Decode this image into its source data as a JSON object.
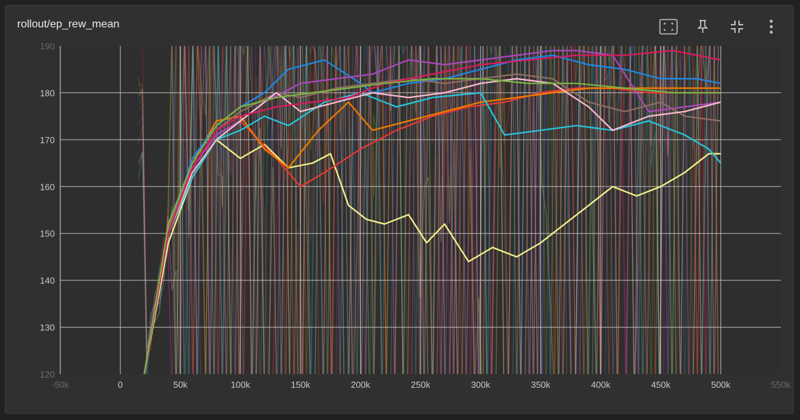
{
  "card": {
    "title": "rollout/ep_rew_mean"
  },
  "toolbar": {
    "icons": [
      "fit-domain-icon",
      "pin-icon",
      "collapse-icon",
      "more-vert-icon"
    ]
  },
  "colors": {
    "background": "#303030",
    "plot_bg": "#2e2e2e",
    "grid": "#d0d0d0",
    "text": "#c9c9c9"
  },
  "chart_data": {
    "type": "line",
    "title": "rollout/ep_rew_mean",
    "xlabel": "",
    "ylabel": "",
    "xlim": [
      -50000,
      550000
    ],
    "ylim": [
      120,
      190
    ],
    "grid": true,
    "x_ticks": [
      0,
      50000,
      100000,
      150000,
      200000,
      250000,
      300000,
      350000,
      400000,
      450000,
      500000
    ],
    "x_tick_labels": [
      "0",
      "50k",
      "100k",
      "150k",
      "200k",
      "250k",
      "300k",
      "350k",
      "400k",
      "450k",
      "500k"
    ],
    "y_ticks": [
      130,
      140,
      150,
      160,
      170,
      180
    ],
    "y_tick_labels": [
      "130",
      "140",
      "150",
      "160",
      "170",
      "180"
    ],
    "edge_tick_labels": [
      "-50k",
      "550k",
      "190",
      "120"
    ],
    "series": [
      {
        "color": "#f2f28a",
        "x": [
          20000,
          40000,
          60000,
          80000,
          100000,
          120000,
          140000,
          160000,
          175000,
          190000,
          205000,
          220000,
          240000,
          255000,
          270000,
          290000,
          310000,
          330000,
          350000,
          370000,
          390000,
          410000,
          430000,
          450000,
          470000,
          490000,
          500000
        ],
        "y": [
          120,
          148,
          162,
          170,
          166,
          169,
          164,
          165,
          167,
          156,
          153,
          152,
          154,
          148,
          152,
          144,
          147,
          145,
          148,
          152,
          156,
          160,
          158,
          160,
          163,
          167,
          167
        ]
      },
      {
        "color": "#e53935",
        "x": [
          20000,
          40000,
          60000,
          80000,
          100000,
          130000,
          150000,
          170000,
          200000,
          230000,
          260000,
          290000,
          320000,
          350000,
          380000,
          410000,
          440000,
          470000,
          500000
        ],
        "y": [
          120,
          150,
          164,
          171,
          174,
          166,
          160,
          163,
          168,
          172,
          175,
          177,
          178,
          180,
          181,
          181,
          180,
          180,
          180
        ]
      },
      {
        "color": "#ef7c00",
        "x": [
          20000,
          40000,
          60000,
          80000,
          100000,
          120000,
          140000,
          165000,
          190000,
          210000,
          240000,
          270000,
          300000,
          330000,
          360000,
          390000,
          420000,
          450000,
          480000,
          500000
        ],
        "y": [
          120,
          152,
          165,
          174,
          175,
          168,
          164,
          172,
          178,
          172,
          174,
          176,
          178,
          179,
          180,
          181,
          181,
          181,
          181,
          181
        ]
      },
      {
        "color": "#1e88e5",
        "x": [
          20000,
          40000,
          60000,
          80000,
          100000,
          120000,
          140000,
          170000,
          200000,
          210000,
          240000,
          270000,
          300000,
          330000,
          360000,
          390000,
          420000,
          450000,
          480000,
          500000
        ],
        "y": [
          120,
          150,
          166,
          173,
          177,
          180,
          185,
          187,
          182,
          180,
          182,
          183,
          185,
          187,
          188,
          186,
          185,
          183,
          183,
          182
        ]
      },
      {
        "color": "#26c6da",
        "x": [
          20000,
          40000,
          60000,
          80000,
          100000,
          120000,
          140000,
          170000,
          200000,
          230000,
          260000,
          300000,
          320000,
          350000,
          380000,
          410000,
          440000,
          470000,
          490000,
          500000
        ],
        "y": [
          120,
          150,
          162,
          170,
          172,
          175,
          173,
          178,
          180,
          177,
          179,
          180,
          171,
          172,
          173,
          172,
          174,
          171,
          168,
          165
        ]
      },
      {
        "color": "#ab47bc",
        "x": [
          20000,
          40000,
          60000,
          80000,
          100000,
          120000,
          150000,
          180000,
          210000,
          240000,
          270000,
          300000,
          330000,
          360000,
          380000,
          410000,
          440000,
          470000,
          500000
        ],
        "y": [
          120,
          151,
          164,
          171,
          174,
          178,
          182,
          183,
          184,
          187,
          186,
          187,
          188,
          189,
          189,
          188,
          176,
          177,
          178
        ]
      },
      {
        "color": "#8d6e63",
        "x": [
          20000,
          40000,
          60000,
          80000,
          100000,
          130000,
          150000,
          180000,
          210000,
          240000,
          270000,
          300000,
          330000,
          360000,
          390000,
          420000,
          450000,
          470000,
          500000
        ],
        "y": [
          120,
          151,
          164,
          172,
          176,
          180,
          179,
          181,
          182,
          183,
          182,
          183,
          184,
          183,
          178,
          176,
          178,
          175,
          174
        ]
      },
      {
        "color": "#f8bbd0",
        "x": [
          20000,
          40000,
          60000,
          80000,
          100000,
          130000,
          150000,
          180000,
          210000,
          240000,
          270000,
          300000,
          330000,
          360000,
          390000,
          410000,
          440000,
          470000,
          500000
        ],
        "y": [
          120,
          150,
          163,
          170,
          174,
          180,
          176,
          178,
          180,
          179,
          180,
          182,
          183,
          182,
          177,
          172,
          175,
          176,
          178
        ]
      },
      {
        "color": "#d81b60",
        "x": [
          20000,
          40000,
          60000,
          80000,
          100000,
          130000,
          160000,
          190000,
          220000,
          260000,
          300000,
          340000,
          380000,
          420000,
          460000,
          500000
        ],
        "y": [
          120,
          150,
          164,
          172,
          175,
          177,
          178,
          179,
          182,
          184,
          186,
          187,
          188,
          188,
          189,
          187
        ]
      },
      {
        "color": "#7cb342",
        "x": [
          20000,
          40000,
          60000,
          80000,
          100000,
          130000,
          160000,
          190000,
          220000,
          260000,
          300000,
          340000,
          380000,
          420000,
          460000,
          500000
        ],
        "y": [
          120,
          152,
          165,
          173,
          177,
          179,
          180,
          181,
          182,
          183,
          183,
          182,
          182,
          181,
          180,
          180
        ]
      }
    ]
  }
}
